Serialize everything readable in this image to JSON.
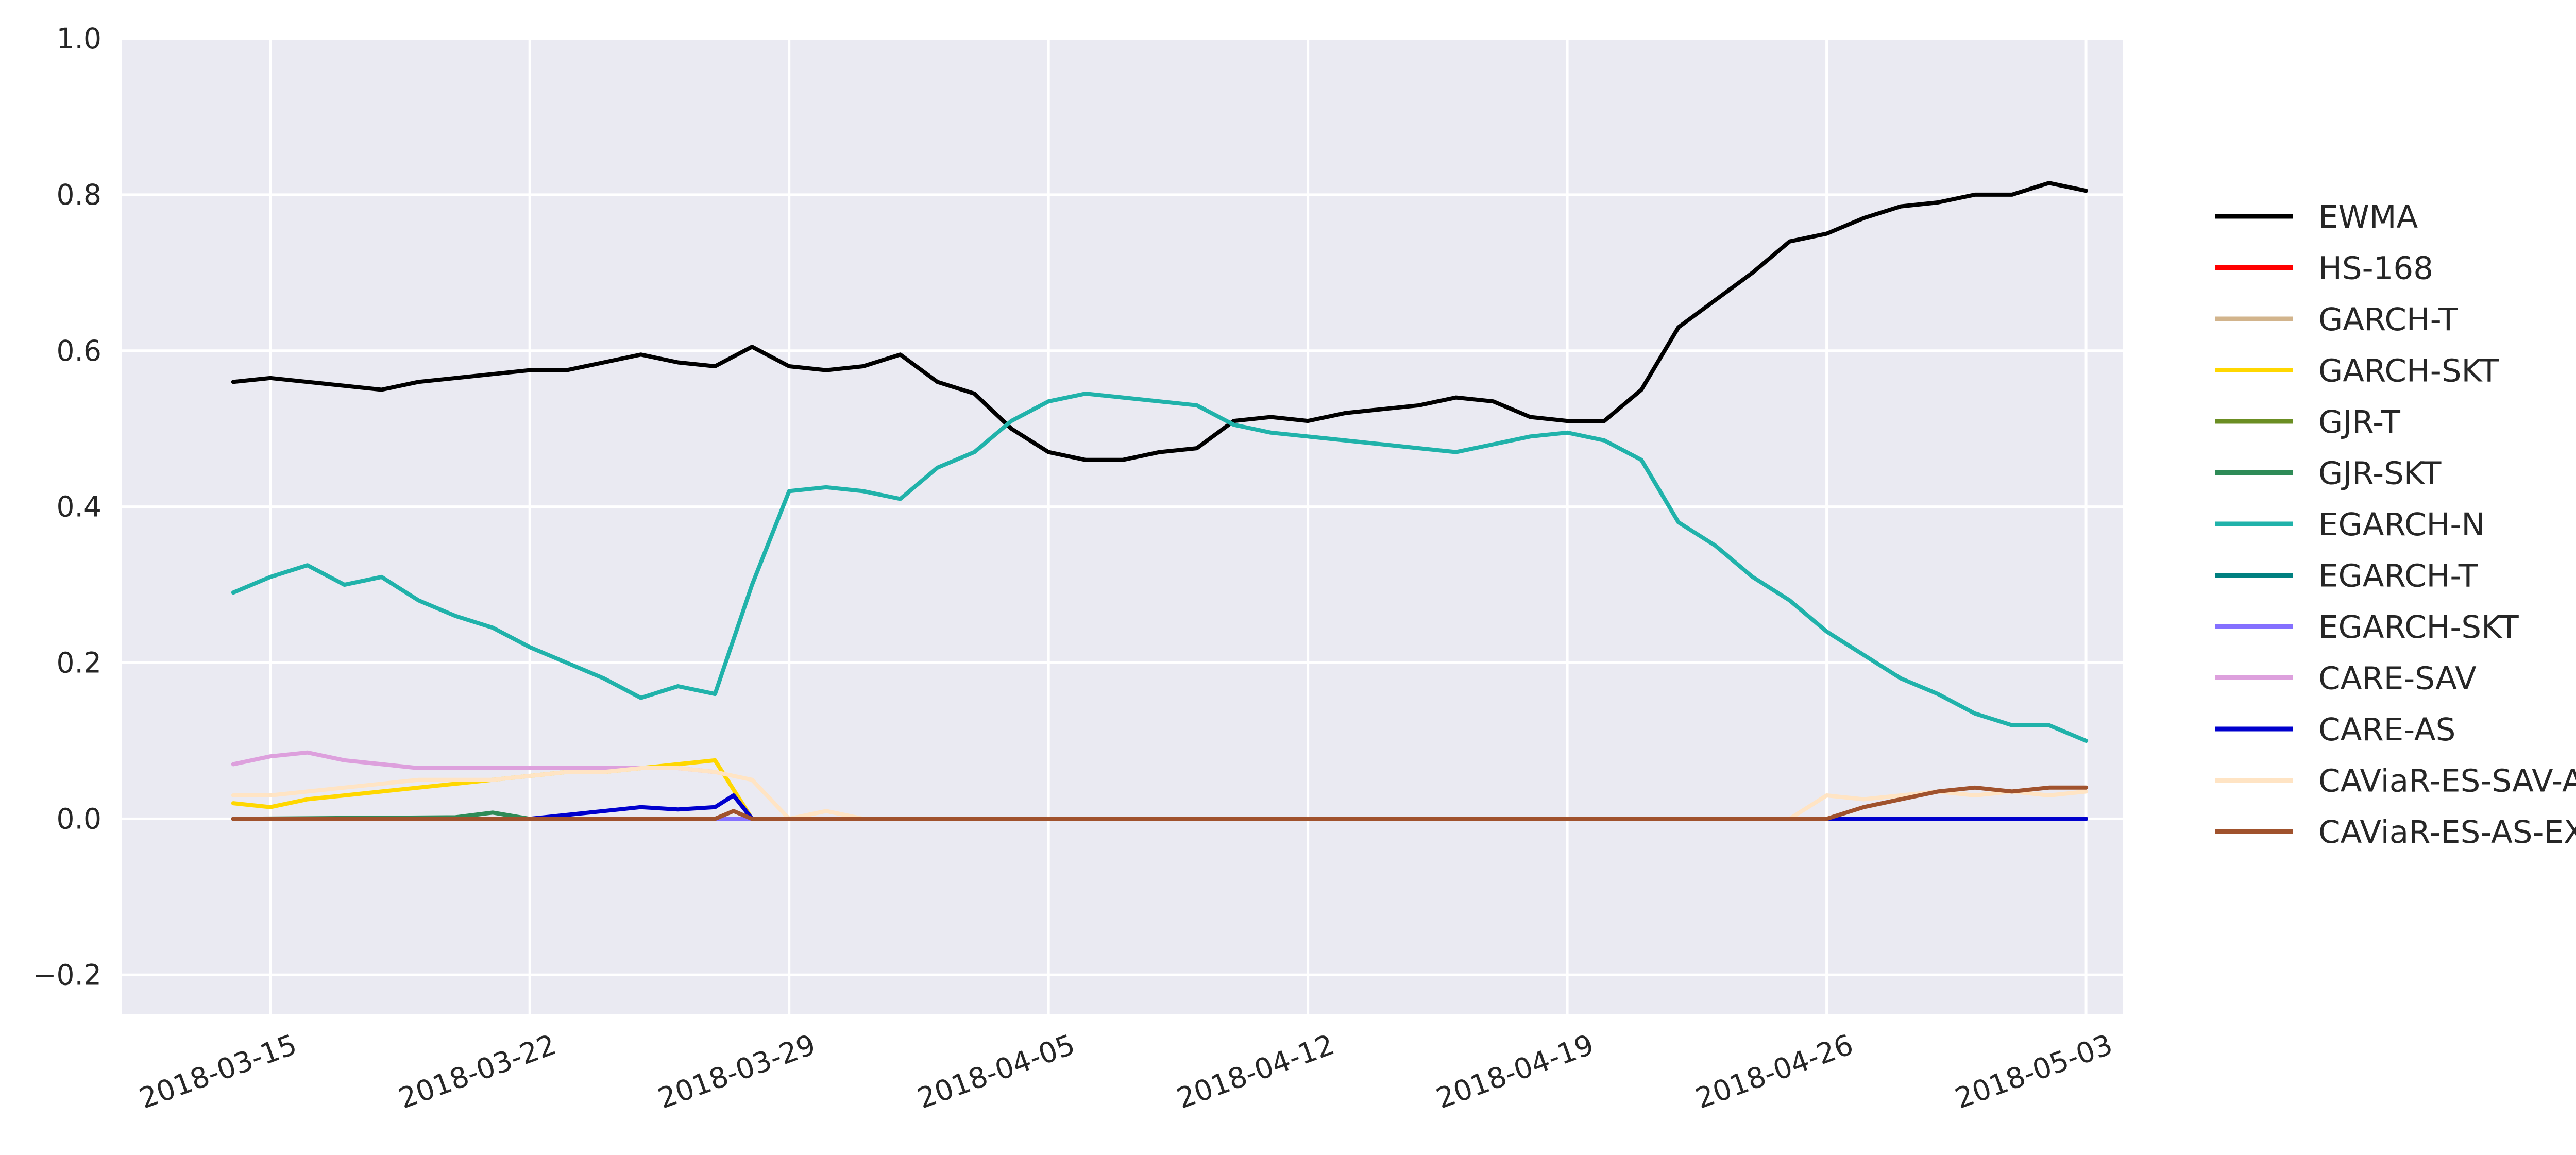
{
  "chart_data": {
    "type": "line",
    "title": "",
    "xlabel": "",
    "ylabel": "",
    "x_start": "2018-03-14",
    "x_end": "2018-05-03",
    "xlim": [
      "2018-03-11",
      "2018-05-04"
    ],
    "ylim": [
      -0.25,
      1.0
    ],
    "y_ticks": [
      -0.2,
      0.0,
      0.2,
      0.4,
      0.6,
      0.8,
      1.0
    ],
    "y_tick_labels": [
      "−0.2",
      "0.0",
      "0.2",
      "0.4",
      "0.6",
      "0.8",
      "1.0"
    ],
    "x_ticks": [
      "2018-03-15",
      "2018-03-22",
      "2018-03-29",
      "2018-04-05",
      "2018-04-12",
      "2018-04-19",
      "2018-04-26",
      "2018-05-03"
    ],
    "grid": true,
    "background": "#eaeaf2",
    "legend_position": "right",
    "series": [
      {
        "name": "EWMA",
        "color": "#000000",
        "points": [
          [
            "2018-03-14",
            0.56
          ],
          [
            "2018-03-15",
            0.565
          ],
          [
            "2018-03-16",
            0.56
          ],
          [
            "2018-03-17",
            0.555
          ],
          [
            "2018-03-18",
            0.55
          ],
          [
            "2018-03-19",
            0.56
          ],
          [
            "2018-03-20",
            0.565
          ],
          [
            "2018-03-21",
            0.57
          ],
          [
            "2018-03-22",
            0.575
          ],
          [
            "2018-03-23",
            0.575
          ],
          [
            "2018-03-24",
            0.585
          ],
          [
            "2018-03-25",
            0.595
          ],
          [
            "2018-03-26",
            0.585
          ],
          [
            "2018-03-27",
            0.58
          ],
          [
            "2018-03-28",
            0.605
          ],
          [
            "2018-03-29",
            0.58
          ],
          [
            "2018-03-30",
            0.575
          ],
          [
            "2018-03-31",
            0.58
          ],
          [
            "2018-04-01",
            0.595
          ],
          [
            "2018-04-02",
            0.56
          ],
          [
            "2018-04-03",
            0.545
          ],
          [
            "2018-04-04",
            0.5
          ],
          [
            "2018-04-05",
            0.47
          ],
          [
            "2018-04-06",
            0.46
          ],
          [
            "2018-04-07",
            0.46
          ],
          [
            "2018-04-08",
            0.47
          ],
          [
            "2018-04-09",
            0.475
          ],
          [
            "2018-04-10",
            0.51
          ],
          [
            "2018-04-11",
            0.515
          ],
          [
            "2018-04-12",
            0.51
          ],
          [
            "2018-04-13",
            0.52
          ],
          [
            "2018-04-14",
            0.525
          ],
          [
            "2018-04-15",
            0.53
          ],
          [
            "2018-04-16",
            0.54
          ],
          [
            "2018-04-17",
            0.535
          ],
          [
            "2018-04-18",
            0.515
          ],
          [
            "2018-04-19",
            0.51
          ],
          [
            "2018-04-20",
            0.51
          ],
          [
            "2018-04-21",
            0.55
          ],
          [
            "2018-04-22",
            0.63
          ],
          [
            "2018-04-23",
            0.665
          ],
          [
            "2018-04-24",
            0.7
          ],
          [
            "2018-04-25",
            0.74
          ],
          [
            "2018-04-26",
            0.75
          ],
          [
            "2018-04-27",
            0.77
          ],
          [
            "2018-04-28",
            0.785
          ],
          [
            "2018-04-29",
            0.79
          ],
          [
            "2018-04-30",
            0.8
          ],
          [
            "2018-05-01",
            0.8
          ],
          [
            "2018-05-02",
            0.815
          ],
          [
            "2018-05-03",
            0.805
          ]
        ]
      },
      {
        "name": "HS-168",
        "color": "#ff0000",
        "points": [
          [
            "2018-03-14",
            0.0
          ],
          [
            "2018-05-03",
            0.0
          ]
        ]
      },
      {
        "name": "GARCH-T",
        "color": "#d2b48c",
        "points": [
          [
            "2018-03-14",
            0.0
          ],
          [
            "2018-05-03",
            0.0
          ]
        ]
      },
      {
        "name": "GARCH-SKT",
        "color": "#ffd700",
        "points": [
          [
            "2018-03-14",
            0.02
          ],
          [
            "2018-03-15",
            0.015
          ],
          [
            "2018-03-16",
            0.025
          ],
          [
            "2018-03-17",
            0.03
          ],
          [
            "2018-03-18",
            0.035
          ],
          [
            "2018-03-19",
            0.04
          ],
          [
            "2018-03-20",
            0.045
          ],
          [
            "2018-03-21",
            0.05
          ],
          [
            "2018-03-22",
            0.055
          ],
          [
            "2018-03-23",
            0.06
          ],
          [
            "2018-03-24",
            0.06
          ],
          [
            "2018-03-25",
            0.065
          ],
          [
            "2018-03-26",
            0.07
          ],
          [
            "2018-03-27",
            0.075
          ],
          [
            "2018-03-28",
            0.0
          ],
          [
            "2018-05-03",
            0.0
          ]
        ]
      },
      {
        "name": "GJR-T",
        "color": "#6b8e23",
        "points": [
          [
            "2018-03-14",
            0.0
          ],
          [
            "2018-05-03",
            0.0
          ]
        ]
      },
      {
        "name": "GJR-SKT",
        "color": "#2e8b57",
        "points": [
          [
            "2018-03-14",
            0.0
          ],
          [
            "2018-03-20",
            0.002
          ],
          [
            "2018-03-21",
            0.008
          ],
          [
            "2018-03-22",
            0.0
          ],
          [
            "2018-05-03",
            0.0
          ]
        ]
      },
      {
        "name": "EGARCH-N",
        "color": "#20b2aa",
        "points": [
          [
            "2018-03-14",
            0.29
          ],
          [
            "2018-03-15",
            0.31
          ],
          [
            "2018-03-16",
            0.325
          ],
          [
            "2018-03-17",
            0.3
          ],
          [
            "2018-03-18",
            0.31
          ],
          [
            "2018-03-19",
            0.28
          ],
          [
            "2018-03-20",
            0.26
          ],
          [
            "2018-03-21",
            0.245
          ],
          [
            "2018-03-22",
            0.22
          ],
          [
            "2018-03-23",
            0.2
          ],
          [
            "2018-03-24",
            0.18
          ],
          [
            "2018-03-25",
            0.155
          ],
          [
            "2018-03-26",
            0.17
          ],
          [
            "2018-03-27",
            0.16
          ],
          [
            "2018-03-28",
            0.3
          ],
          [
            "2018-03-29",
            0.42
          ],
          [
            "2018-03-30",
            0.425
          ],
          [
            "2018-03-31",
            0.42
          ],
          [
            "2018-04-01",
            0.41
          ],
          [
            "2018-04-02",
            0.45
          ],
          [
            "2018-04-03",
            0.47
          ],
          [
            "2018-04-04",
            0.51
          ],
          [
            "2018-04-05",
            0.535
          ],
          [
            "2018-04-06",
            0.545
          ],
          [
            "2018-04-07",
            0.54
          ],
          [
            "2018-04-08",
            0.535
          ],
          [
            "2018-04-09",
            0.53
          ],
          [
            "2018-04-10",
            0.505
          ],
          [
            "2018-04-11",
            0.495
          ],
          [
            "2018-04-12",
            0.49
          ],
          [
            "2018-04-13",
            0.485
          ],
          [
            "2018-04-14",
            0.48
          ],
          [
            "2018-04-15",
            0.475
          ],
          [
            "2018-04-16",
            0.47
          ],
          [
            "2018-04-17",
            0.48
          ],
          [
            "2018-04-18",
            0.49
          ],
          [
            "2018-04-19",
            0.495
          ],
          [
            "2018-04-20",
            0.485
          ],
          [
            "2018-04-21",
            0.46
          ],
          [
            "2018-04-22",
            0.38
          ],
          [
            "2018-04-23",
            0.35
          ],
          [
            "2018-04-24",
            0.31
          ],
          [
            "2018-04-25",
            0.28
          ],
          [
            "2018-04-26",
            0.24
          ],
          [
            "2018-04-27",
            0.21
          ],
          [
            "2018-04-28",
            0.18
          ],
          [
            "2018-04-29",
            0.16
          ],
          [
            "2018-04-30",
            0.135
          ],
          [
            "2018-05-01",
            0.12
          ],
          [
            "2018-05-02",
            0.12
          ],
          [
            "2018-05-03",
            0.1
          ]
        ]
      },
      {
        "name": "EGARCH-T",
        "color": "#008080",
        "points": [
          [
            "2018-03-14",
            0.0
          ],
          [
            "2018-05-03",
            0.0
          ]
        ]
      },
      {
        "name": "EGARCH-SKT",
        "color": "#8470ff",
        "points": [
          [
            "2018-03-14",
            0.0
          ],
          [
            "2018-05-03",
            0.0
          ]
        ]
      },
      {
        "name": "CARE-SAV",
        "color": "#dda0dd",
        "points": [
          [
            "2018-03-14",
            0.07
          ],
          [
            "2018-03-15",
            0.08
          ],
          [
            "2018-03-16",
            0.085
          ],
          [
            "2018-03-17",
            0.075
          ],
          [
            "2018-03-18",
            0.07
          ],
          [
            "2018-03-19",
            0.065
          ],
          [
            "2018-03-20",
            0.065
          ],
          [
            "2018-03-21",
            0.065
          ],
          [
            "2018-03-22",
            0.065
          ],
          [
            "2018-03-23",
            0.065
          ],
          [
            "2018-03-24",
            0.065
          ],
          [
            "2018-03-25",
            0.065
          ],
          [
            "2018-03-26",
            0.065
          ],
          [
            "2018-03-27",
            0.06
          ]
        ]
      },
      {
        "name": "CARE-AS",
        "color": "#0000cd",
        "points": [
          [
            "2018-03-14",
            0.0
          ],
          [
            "2018-03-22",
            0.0
          ],
          [
            "2018-03-23",
            0.005
          ],
          [
            "2018-03-24",
            0.01
          ],
          [
            "2018-03-25",
            0.015
          ],
          [
            "2018-03-26",
            0.012
          ],
          [
            "2018-03-27",
            0.015
          ],
          [
            "2018-03-27.5",
            0.03
          ],
          [
            "2018-03-28",
            0.0
          ],
          [
            "2018-04-26",
            0.0
          ],
          [
            "2018-05-03",
            0.0
          ]
        ]
      },
      {
        "name": "CAViaR-ES-SAV-AR",
        "color": "#ffe4c4",
        "points": [
          [
            "2018-03-14",
            0.03
          ],
          [
            "2018-03-15",
            0.03
          ],
          [
            "2018-03-16",
            0.035
          ],
          [
            "2018-03-17",
            0.04
          ],
          [
            "2018-03-18",
            0.045
          ],
          [
            "2018-03-19",
            0.05
          ],
          [
            "2018-03-20",
            0.05
          ],
          [
            "2018-03-21",
            0.05
          ],
          [
            "2018-03-22",
            0.055
          ],
          [
            "2018-03-23",
            0.06
          ],
          [
            "2018-03-24",
            0.06
          ],
          [
            "2018-03-25",
            0.065
          ],
          [
            "2018-03-26",
            0.065
          ],
          [
            "2018-03-27",
            0.06
          ],
          [
            "2018-03-28",
            0.05
          ],
          [
            "2018-03-29",
            0.0
          ],
          [
            "2018-03-30",
            0.01
          ],
          [
            "2018-03-31",
            0.0
          ],
          [
            "2018-04-25",
            0.0
          ],
          [
            "2018-04-26",
            0.03
          ],
          [
            "2018-04-27",
            0.025
          ],
          [
            "2018-04-28",
            0.03
          ],
          [
            "2018-04-29",
            0.035
          ],
          [
            "2018-04-30",
            0.03
          ],
          [
            "2018-05-01",
            0.035
          ],
          [
            "2018-05-02",
            0.03
          ],
          [
            "2018-05-03",
            0.035
          ]
        ]
      },
      {
        "name": "CAViaR-ES-AS-EXP",
        "color": "#a0522d",
        "points": [
          [
            "2018-03-14",
            0.0
          ],
          [
            "2018-03-27",
            0.0
          ],
          [
            "2018-03-27.5",
            0.01
          ],
          [
            "2018-03-28",
            0.0
          ],
          [
            "2018-04-26",
            0.0
          ],
          [
            "2018-04-27",
            0.015
          ],
          [
            "2018-04-28",
            0.025
          ],
          [
            "2018-04-29",
            0.035
          ],
          [
            "2018-04-30",
            0.04
          ],
          [
            "2018-05-01",
            0.035
          ],
          [
            "2018-05-02",
            0.04
          ],
          [
            "2018-05-03",
            0.04
          ]
        ]
      }
    ]
  }
}
